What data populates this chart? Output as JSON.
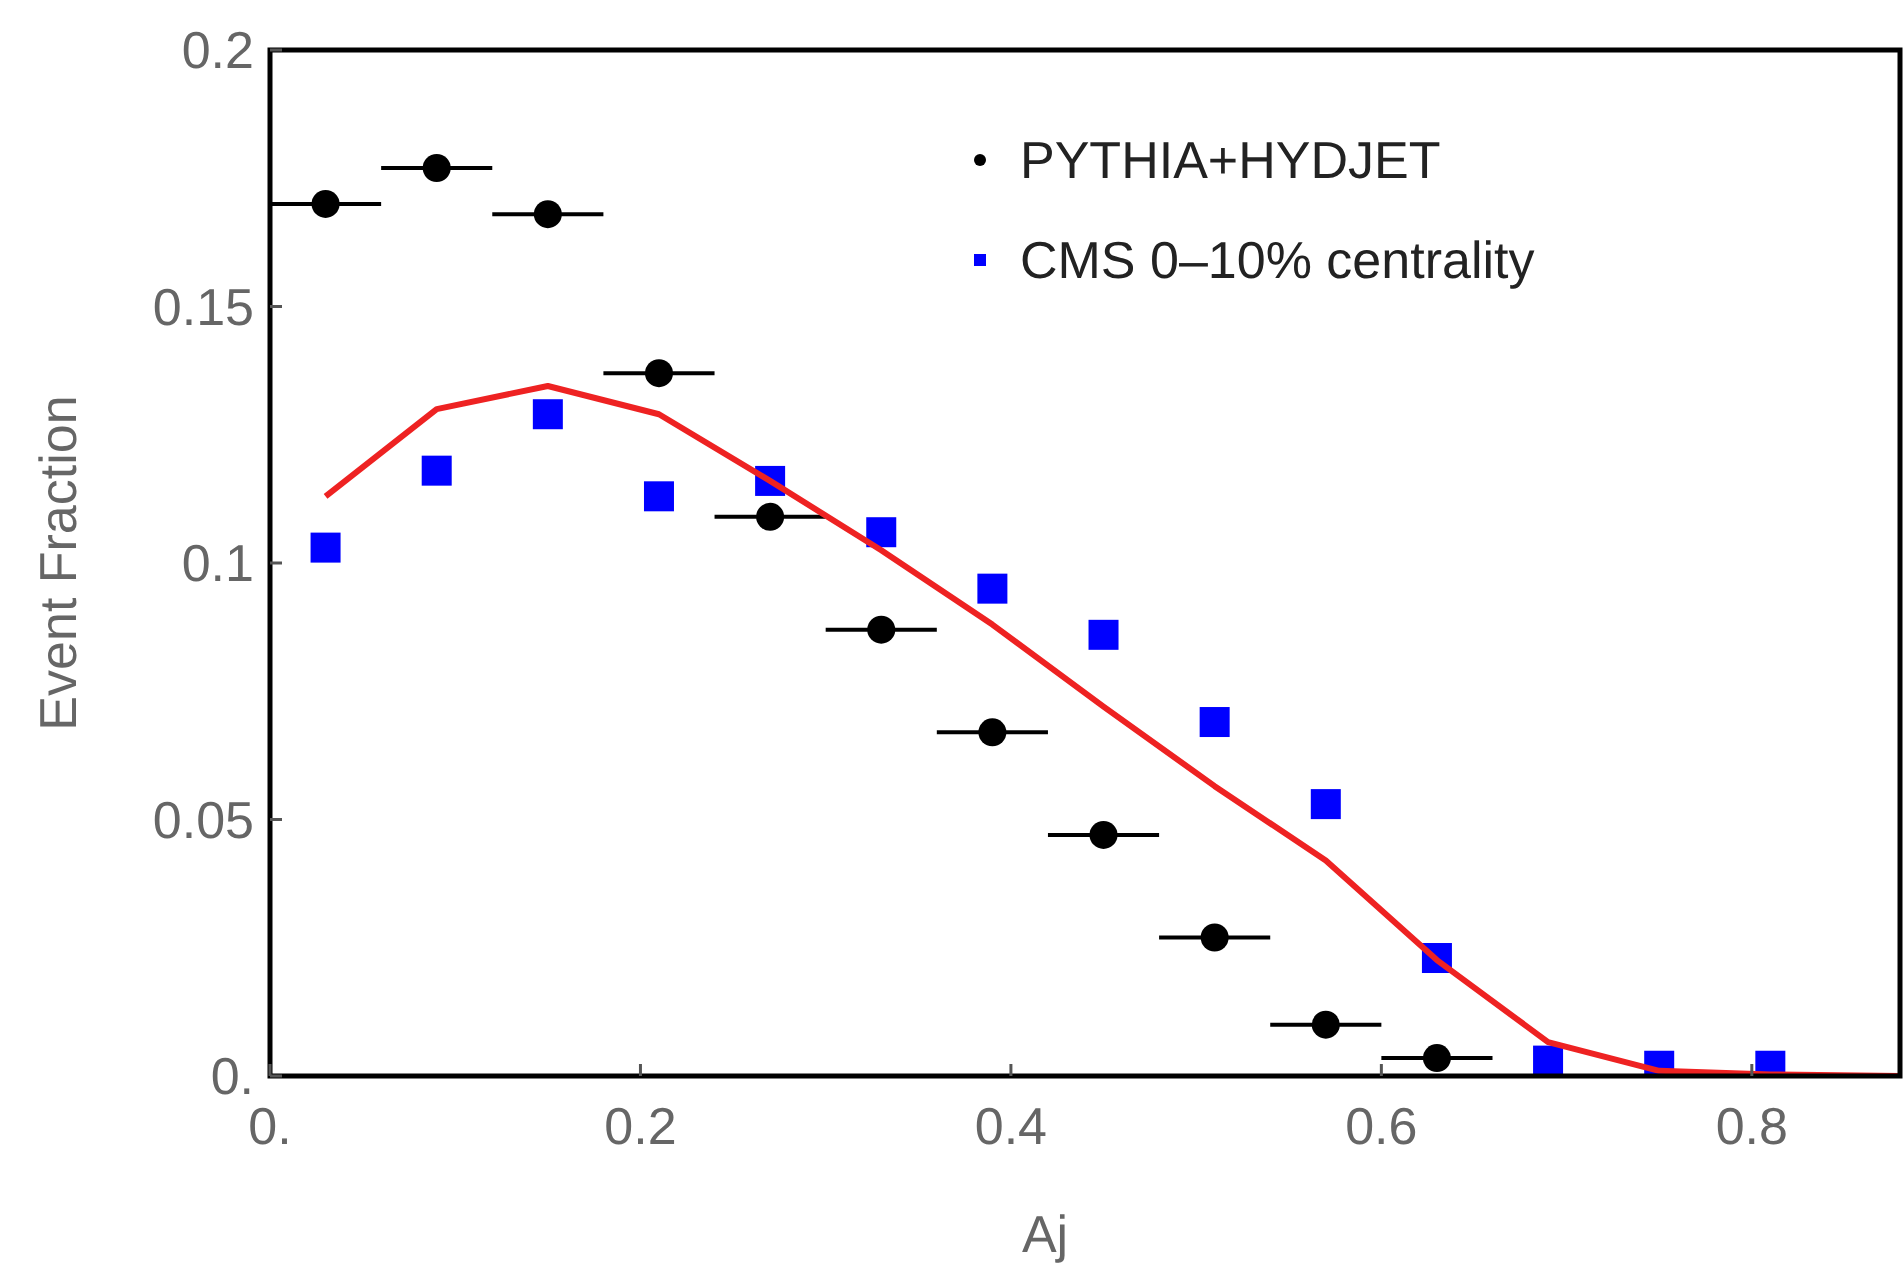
{
  "chart_data": {
    "type": "scatter",
    "xlabel": "Aj",
    "ylabel": "Event Fraction",
    "xlim": [
      0,
      0.88
    ],
    "ylim": [
      0,
      0.2
    ],
    "xticks": [
      {
        "value": 0,
        "label": "0."
      },
      0.2,
      0.4,
      0.6,
      0.8
    ],
    "yticks": [
      {
        "value": 0,
        "label": "0."
      },
      0.05,
      0.1,
      0.15,
      0.2
    ],
    "legend": "top right",
    "grid": false,
    "series": [
      {
        "name": "PYTHIA+HYDJET",
        "marker": "circle",
        "color": "#000000",
        "x": [
          0.03,
          0.09,
          0.15,
          0.21,
          0.27,
          0.33,
          0.39,
          0.45,
          0.51,
          0.57,
          0.63
        ],
        "values": [
          0.17,
          0.177,
          0.168,
          0.137,
          0.109,
          0.087,
          0.067,
          0.047,
          0.027,
          0.01,
          0.0035
        ],
        "xerrors": [
          0.03,
          0.03,
          0.03,
          0.03,
          0.03,
          0.03,
          0.03,
          0.03,
          0.03,
          0.03,
          0.03
        ]
      },
      {
        "name": "CMS 0–10% centrality",
        "marker": "square",
        "color": "#0000ff",
        "x": [
          0.03,
          0.09,
          0.15,
          0.21,
          0.27,
          0.33,
          0.39,
          0.45,
          0.51,
          0.57,
          0.63,
          0.69,
          0.75,
          0.81
        ],
        "values": [
          0.103,
          0.118,
          0.129,
          0.113,
          0.116,
          0.106,
          0.095,
          0.086,
          0.069,
          0.053,
          0.023,
          0.003,
          0.002,
          0.002
        ]
      },
      {
        "type": "line",
        "marker": "none",
        "line_style": "solid",
        "color": "#ee2222",
        "x": [
          0.03,
          0.09,
          0.15,
          0.21,
          0.27,
          0.33,
          0.39,
          0.45,
          0.51,
          0.57,
          0.63,
          0.69,
          0.75,
          0.81,
          0.88
        ],
        "values": [
          0.113,
          0.13,
          0.1345,
          0.129,
          0.116,
          0.1025,
          0.088,
          0.072,
          0.0565,
          0.042,
          0.0226,
          0.0066,
          0.001,
          0.0003,
          0
        ]
      }
    ]
  }
}
